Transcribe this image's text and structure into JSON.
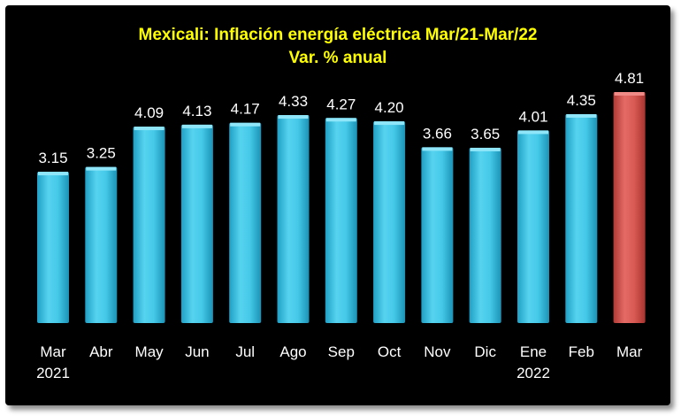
{
  "chart_data": {
    "type": "bar",
    "title": "Mexicali: Inflación energía eléctrica Mar/21-Mar/22",
    "subtitle": "Var. % anual",
    "categories": [
      "Mar",
      "Abr",
      "May",
      "Jun",
      "Jul",
      "Ago",
      "Sep",
      "Oct",
      "Nov",
      "Dic",
      "Ene",
      "Feb",
      "Mar"
    ],
    "category_years": [
      "2021",
      "",
      "",
      "",
      "",
      "",
      "",
      "",
      "",
      "",
      "2022",
      "",
      ""
    ],
    "values": [
      3.15,
      3.25,
      4.09,
      4.13,
      4.17,
      4.33,
      4.27,
      4.2,
      3.66,
      3.65,
      4.01,
      4.35,
      4.81
    ],
    "value_labels": [
      "3.15",
      "3.25",
      "4.09",
      "4.13",
      "4.17",
      "4.33",
      "4.27",
      "4.20",
      "3.66",
      "3.65",
      "4.01",
      "4.35",
      "4.81"
    ],
    "ylim": [
      0,
      5
    ],
    "grid": false,
    "legend": "none",
    "bar_color": "#3ec6e6",
    "highlight_color": "#d9534f",
    "highlight_index": 12
  }
}
